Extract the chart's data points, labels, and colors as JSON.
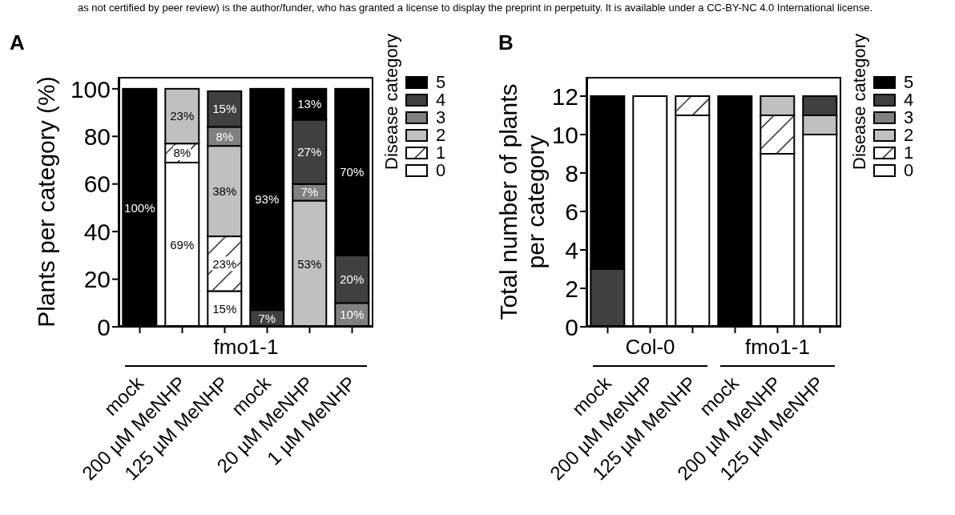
{
  "chart_data": [
    {
      "type": "bar",
      "title": "A",
      "subtitle": "as not certified by peer review) is the author/funder, who has granted a license to display the preprint in perpetuity. It is available under a CC-BY-NC 4.0 International license.",
      "ylabel": "Plants per category (%)",
      "legend_title": "Disease category",
      "legend": "right",
      "stacked": true,
      "categories": [
        "mock",
        "200 µM MeNHP",
        "125 µM MeNHP",
        "mock",
        "20 µM MeNHP",
        "1 µM MeNHP"
      ],
      "ylim": [
        0,
        105
      ],
      "yticks": [
        0,
        20,
        40,
        60,
        80,
        100
      ],
      "annotations": [
        "fmo1-1"
      ],
      "series": [
        {
          "name": "0",
          "color": "#ffffff",
          "values": [
            null,
            69,
            15,
            null,
            null,
            null
          ],
          "value_labels": [
            null,
            "69%",
            "15%",
            null,
            null,
            null
          ]
        },
        {
          "name": "1",
          "color": "#ffffff",
          "values": [
            null,
            8,
            23,
            null,
            null,
            null
          ],
          "value_labels": [
            null,
            "8%",
            "23%",
            null,
            null,
            null
          ]
        },
        {
          "name": "2",
          "color": "#c0c0c0",
          "values": [
            null,
            23,
            38,
            null,
            53,
            null
          ],
          "value_labels": [
            null,
            "23%",
            "38%",
            null,
            "53%",
            null
          ]
        },
        {
          "name": "3",
          "color": "#808080",
          "values": [
            null,
            null,
            8,
            null,
            7,
            10
          ],
          "value_labels": [
            null,
            null,
            "8%",
            null,
            "7%",
            "10%"
          ]
        },
        {
          "name": "4",
          "color": "#404040",
          "values": [
            null,
            null,
            15,
            7,
            27,
            20
          ],
          "value_labels": [
            null,
            null,
            "15%",
            "7%",
            "27%",
            "20%"
          ]
        },
        {
          "name": "5",
          "color": "#000000",
          "values": [
            100,
            null,
            null,
            93,
            13,
            70
          ],
          "value_labels": [
            "100%",
            null,
            null,
            "93%",
            "13%",
            "70%"
          ]
        }
      ]
    },
    {
      "type": "bar",
      "title": "B",
      "ylabel": "Total number of plants per category",
      "legend_title": "Disease category",
      "legend": "right",
      "stacked": true,
      "categories": [
        "mock",
        "200 µM MeNHP",
        "125 µM MeNHP",
        "mock",
        "200 µM MeNHP",
        "125 µM MeNHP"
      ],
      "ylim": [
        0,
        13
      ],
      "yticks": [
        0,
        2,
        4,
        6,
        8,
        10,
        12
      ],
      "annotations": [
        "Col-0",
        "fmo1-1"
      ],
      "series": [
        {
          "name": "0",
          "color": "#ffffff",
          "values": [
            null,
            12,
            11,
            null,
            9,
            10
          ]
        },
        {
          "name": "1",
          "color": "#ffffff",
          "values": [
            null,
            null,
            1,
            null,
            2,
            null
          ]
        },
        {
          "name": "2",
          "color": "#c0c0c0",
          "values": [
            null,
            null,
            null,
            null,
            1,
            1
          ]
        },
        {
          "name": "3",
          "color": "#808080",
          "values": [
            null,
            null,
            null,
            null,
            null,
            null
          ]
        },
        {
          "name": "4",
          "color": "#404040",
          "values": [
            3,
            null,
            null,
            null,
            null,
            1
          ]
        },
        {
          "name": "5",
          "color": "#000000",
          "values": [
            9,
            null,
            null,
            12,
            null,
            null
          ]
        }
      ]
    }
  ]
}
